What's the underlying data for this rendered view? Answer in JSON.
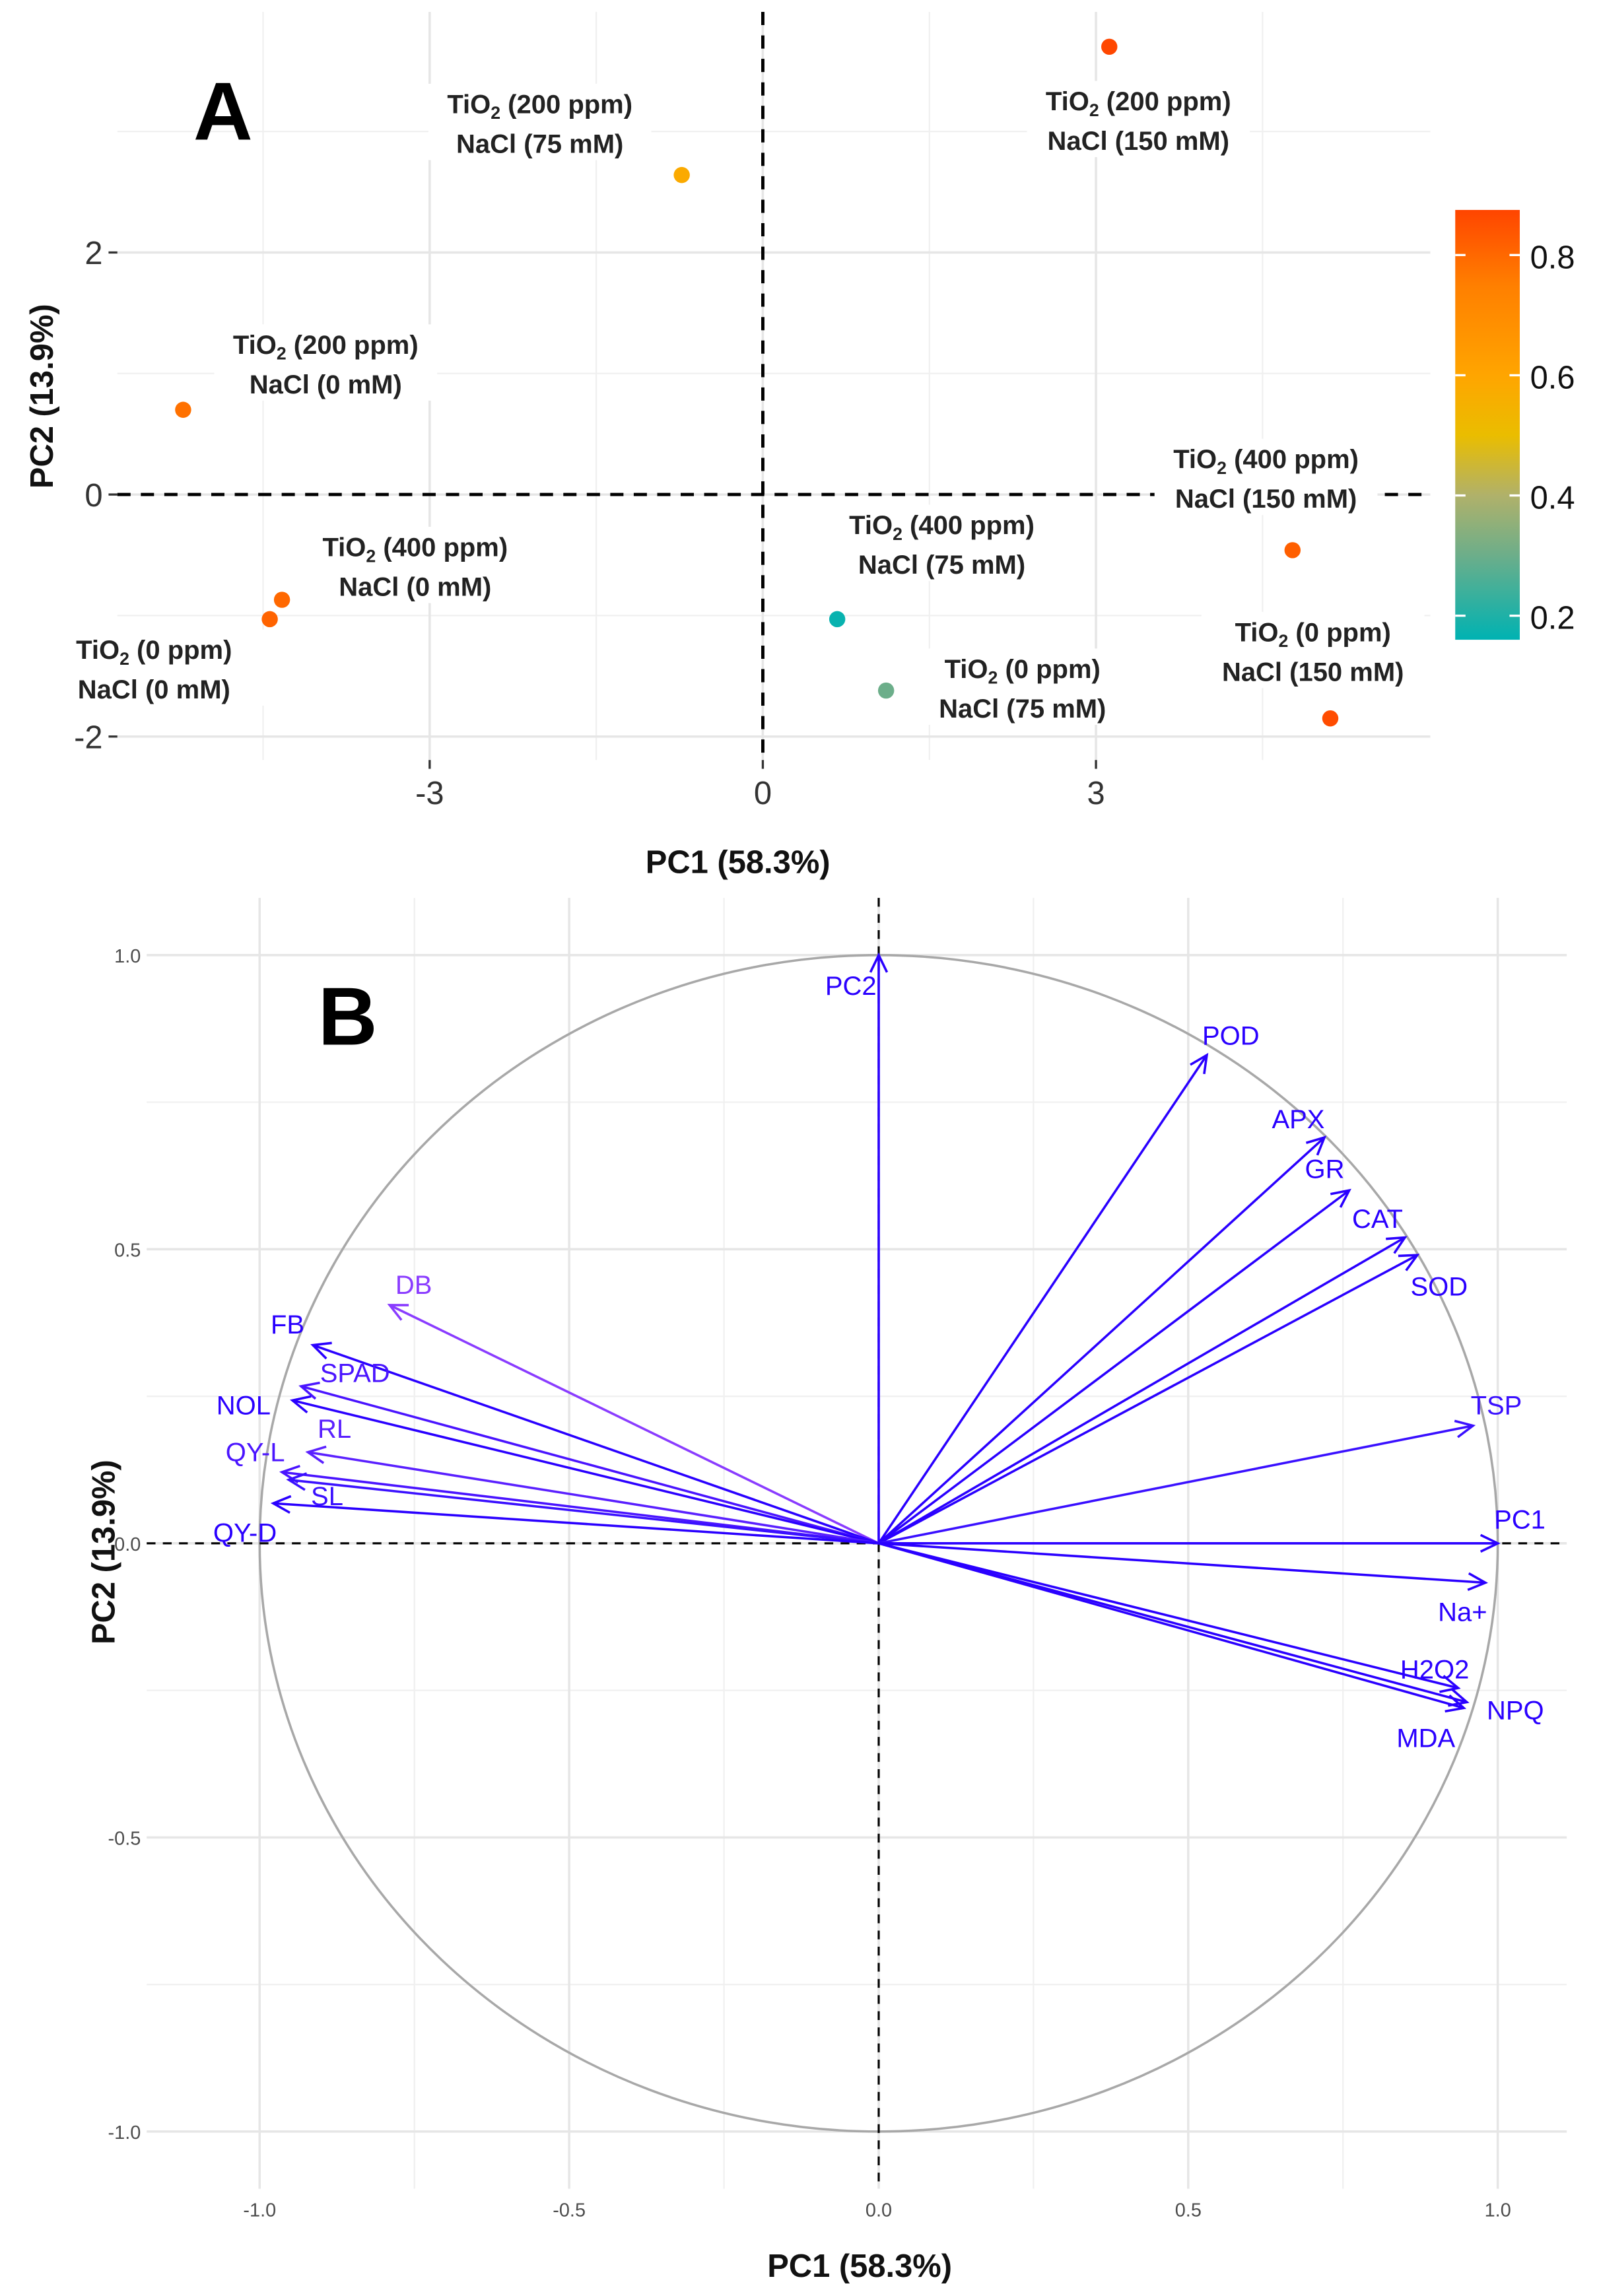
{
  "chart_data": [
    {
      "type": "scatter",
      "panel_letter": "A",
      "title": "",
      "xlabel": "PC1 (58.3%)",
      "ylabel": "PC2 (13.9%)",
      "xlim": [
        -5.9,
        6.0
      ],
      "ylim": [
        -2.15,
        3.9
      ],
      "x_ticks": [
        -3,
        0,
        3
      ],
      "x_tick_labels": [
        "-3",
        "0",
        "3"
      ],
      "y_ticks": [
        -2,
        0,
        2
      ],
      "y_tick_labels": [
        "-2",
        "0",
        "2"
      ],
      "grid": true,
      "label_prefix": "TiO",
      "label_subscript": "2",
      "points": [
        {
          "tio2": " (200 ppm)",
          "nacl": "NaCl (150 mM)",
          "x": 3.12,
          "y": 3.7,
          "value": 0.87
        },
        {
          "tio2": " (200 ppm)",
          "nacl": "NaCl (75 mM)",
          "x": -0.73,
          "y": 2.64,
          "value": 0.58
        },
        {
          "tio2": " (200 ppm)",
          "nacl": "NaCl (0 mM)",
          "x": -5.22,
          "y": 0.7,
          "value": 0.78
        },
        {
          "tio2": " (400 ppm)",
          "nacl": "NaCl (0 mM)",
          "x": -4.33,
          "y": -0.87,
          "value": 0.8
        },
        {
          "tio2": " (0 ppm)",
          "nacl": "NaCl (0 mM)",
          "x": -4.44,
          "y": -1.03,
          "value": 0.81
        },
        {
          "tio2": " (400 ppm)",
          "nacl": "NaCl (75 mM)",
          "x": 0.67,
          "y": -1.03,
          "value": 0.17
        },
        {
          "tio2": " (0 ppm)",
          "nacl": "NaCl (75 mM)",
          "x": 1.11,
          "y": -1.62,
          "value": 0.3
        },
        {
          "tio2": " (400 ppm)",
          "nacl": "NaCl (150 mM)",
          "x": 4.77,
          "y": -0.46,
          "value": 0.82
        },
        {
          "tio2": " (0 ppm)",
          "nacl": "NaCl (150 mM)",
          "x": 5.11,
          "y": -1.85,
          "value": 0.86
        }
      ],
      "colorbar": {
        "range": [
          0.16,
          0.875
        ],
        "ticks": [
          0.8,
          0.6,
          0.4,
          0.2
        ],
        "tick_labels": [
          "0.8",
          "0.6",
          "0.4",
          "0.2"
        ],
        "stops": [
          {
            "value": 0.16,
            "color": "#00b2b2"
          },
          {
            "value": 0.3,
            "color": "#6cae8a"
          },
          {
            "value": 0.4,
            "color": "#b0b16a"
          },
          {
            "value": 0.5,
            "color": "#eabd00"
          },
          {
            "value": 0.6,
            "color": "#ffa500"
          },
          {
            "value": 0.75,
            "color": "#ff7f00"
          },
          {
            "value": 0.875,
            "color": "#ff4500"
          }
        ],
        "placement": "right"
      }
    },
    {
      "type": "biplot-vectors",
      "panel_letter": "B",
      "xlabel": "PC1 (58.3%)",
      "ylabel": "PC2 (13.9%)",
      "xlim": [
        -1.1,
        1.1
      ],
      "ylim": [
        -1.1,
        1.1
      ],
      "x_ticks": [
        -1.0,
        -0.5,
        0.0,
        0.5,
        1.0
      ],
      "x_tick_labels": [
        "-1.0",
        "-0.5",
        "0.0",
        "0.5",
        "1.0"
      ],
      "y_ticks": [
        1.0,
        0.5,
        0.0,
        -0.5,
        -1.0
      ],
      "y_tick_labels": [
        "1.0",
        "0.5",
        "0.0",
        "-0.5",
        "-1.0"
      ],
      "grid": true,
      "unit_circle": true,
      "vector_color": "#2a00ff",
      "vectors": [
        {
          "name": "PC2",
          "x": 0.0,
          "y": 1.0,
          "color": "#2a00ff"
        },
        {
          "name": "POD",
          "x": 0.53,
          "y": 0.83,
          "color": "#2a00ff"
        },
        {
          "name": "APX",
          "x": 0.72,
          "y": 0.69,
          "color": "#2a00ff"
        },
        {
          "name": "GR",
          "x": 0.76,
          "y": 0.6,
          "color": "#2a00ff"
        },
        {
          "name": "CAT",
          "x": 0.85,
          "y": 0.52,
          "color": "#2a00ff"
        },
        {
          "name": "SOD",
          "x": 0.87,
          "y": 0.49,
          "color": "#2a00ff"
        },
        {
          "name": "TSP",
          "x": 0.96,
          "y": 0.2,
          "color": "#3a10ff"
        },
        {
          "name": "PC1",
          "x": 1.0,
          "y": 0.0,
          "color": "#2a00ff"
        },
        {
          "name": "Na+",
          "x": 0.98,
          "y": -0.067,
          "color": "#2a00ff"
        },
        {
          "name": "H2O2",
          "x": 0.936,
          "y": -0.246,
          "color": "#2a00ff"
        },
        {
          "name": "NPQ",
          "x": 0.95,
          "y": -0.27,
          "color": "#2a00ff"
        },
        {
          "name": "MDA",
          "x": 0.945,
          "y": -0.28,
          "color": "#2a00ff"
        },
        {
          "name": "DB",
          "x": -0.79,
          "y": 0.405,
          "color": "#8a3cff"
        },
        {
          "name": "FB",
          "x": -0.914,
          "y": 0.337,
          "color": "#2a00ff"
        },
        {
          "name": "SPAD",
          "x": -0.933,
          "y": 0.267,
          "color": "#4a14ff"
        },
        {
          "name": "NOL",
          "x": -0.947,
          "y": 0.243,
          "color": "#2a00ff"
        },
        {
          "name": "RL",
          "x": -0.922,
          "y": 0.155,
          "color": "#5a20ff"
        },
        {
          "name": "QY-L",
          "x": -0.964,
          "y": 0.121,
          "color": "#4a14ff"
        },
        {
          "name": "SL",
          "x": -0.953,
          "y": 0.108,
          "color": "#3a10ff"
        },
        {
          "name": "QY-D",
          "x": -0.978,
          "y": 0.068,
          "color": "#2a00ff"
        }
      ]
    }
  ]
}
